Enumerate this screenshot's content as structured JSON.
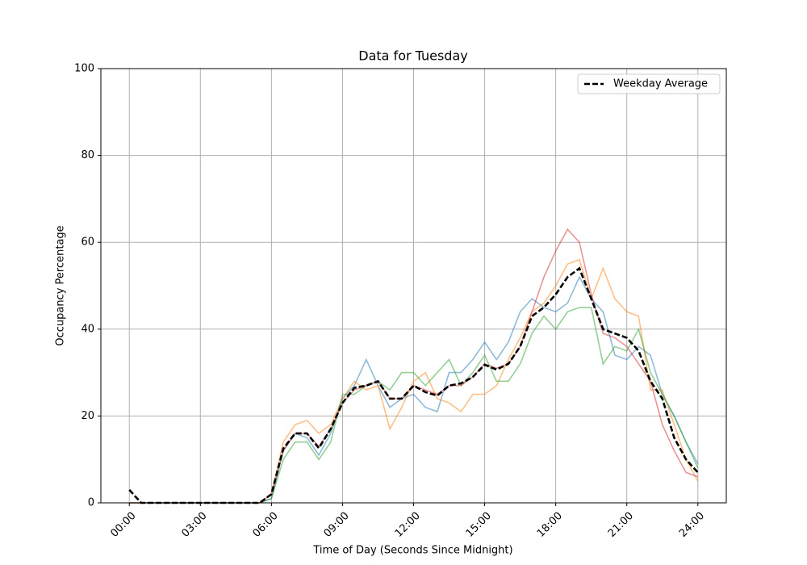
{
  "chart_data": {
    "type": "line",
    "title": "Data for Tuesday",
    "x_label": "Time of Day (Seconds Since Midnight)",
    "y_label": "Occupancy Percentage",
    "x": [
      0,
      1800,
      3600,
      5400,
      7200,
      9000,
      10800,
      12600,
      14400,
      16200,
      18000,
      19800,
      21600,
      23400,
      25200,
      27000,
      28800,
      30600,
      32400,
      34200,
      36000,
      37800,
      39600,
      41400,
      43200,
      45000,
      46800,
      48600,
      50400,
      52200,
      54000,
      55800,
      57600,
      59400,
      61200,
      63000,
      64800,
      66600,
      68400,
      70200,
      72000,
      73800,
      75600,
      77400,
      79200,
      81000,
      82800,
      84600,
      86400
    ],
    "series": [
      {
        "color": "#1f77b4",
        "values": [
          0,
          0,
          0,
          0,
          0,
          0,
          0,
          0,
          0,
          0,
          0,
          0,
          1,
          12,
          16,
          15,
          11,
          16,
          24,
          27,
          33,
          27,
          22,
          24,
          25,
          22,
          21,
          30,
          30,
          33,
          37,
          33,
          37,
          44,
          47,
          45,
          44,
          46,
          52,
          47,
          44,
          34,
          33,
          36,
          34,
          25,
          20,
          14,
          9
        ]
      },
      {
        "color": "#ff7f0e",
        "values": [
          0,
          0,
          0,
          0,
          0,
          0,
          0,
          0,
          0,
          0,
          0,
          0,
          2,
          14,
          18,
          19,
          16,
          18,
          24,
          28,
          26,
          27,
          17,
          22,
          28,
          30,
          24,
          23,
          21,
          25,
          25,
          27,
          33,
          38,
          44,
          46,
          50,
          55,
          56,
          47,
          54,
          47,
          44,
          43,
          26,
          26,
          18,
          10,
          5
        ]
      },
      {
        "color": "#2ca02c",
        "values": [
          0,
          0,
          0,
          0,
          0,
          0,
          0,
          0,
          0,
          0,
          0,
          0,
          1,
          10,
          14,
          14,
          10,
          14,
          25,
          25,
          27,
          28,
          26,
          30,
          30,
          27,
          30,
          33,
          27,
          30,
          34,
          28,
          28,
          32,
          39,
          43,
          40,
          44,
          45,
          45,
          32,
          36,
          35,
          40,
          30,
          25,
          20,
          14,
          8
        ]
      },
      {
        "color": "#d62728",
        "values": [
          0,
          0,
          0,
          0,
          0,
          0,
          0,
          0,
          0,
          0,
          0,
          0,
          2,
          12,
          16,
          16,
          13,
          17,
          23,
          26,
          27,
          28,
          24,
          24,
          27,
          26,
          25,
          27,
          27,
          29,
          32,
          31,
          32,
          36,
          44,
          52,
          58,
          63,
          60,
          48,
          39,
          38,
          36,
          32,
          28,
          18,
          12,
          7,
          6
        ]
      },
      {
        "name": "Weekday Average",
        "color": "#000000",
        "dashed": true,
        "values": [
          3,
          0,
          0,
          0,
          0,
          0,
          0,
          0,
          0,
          0,
          0,
          0,
          2,
          12.5,
          16,
          16,
          12.6,
          17,
          23,
          26.5,
          27,
          28,
          24,
          24,
          27,
          25.5,
          24.7,
          27,
          27.5,
          29,
          31.8,
          30.7,
          32,
          36,
          43,
          45,
          48,
          52,
          54,
          47,
          40,
          39,
          38,
          35,
          28,
          24,
          15,
          10,
          7
        ]
      }
    ],
    "xlim": [
      -4320,
      90720
    ],
    "xticks": [
      {
        "value": 0,
        "label": "00:00"
      },
      {
        "value": 10800,
        "label": "03:00"
      },
      {
        "value": 21600,
        "label": "06:00"
      },
      {
        "value": 32400,
        "label": "09:00"
      },
      {
        "value": 43200,
        "label": "12:00"
      },
      {
        "value": 54000,
        "label": "15:00"
      },
      {
        "value": 64800,
        "label": "18:00"
      },
      {
        "value": 75600,
        "label": "21:00"
      },
      {
        "value": 86400,
        "label": "24:00"
      }
    ],
    "ylim": [
      0,
      100
    ],
    "yticks": [
      0,
      20,
      40,
      60,
      80,
      100
    ],
    "grid": true,
    "legend": "upper right"
  }
}
